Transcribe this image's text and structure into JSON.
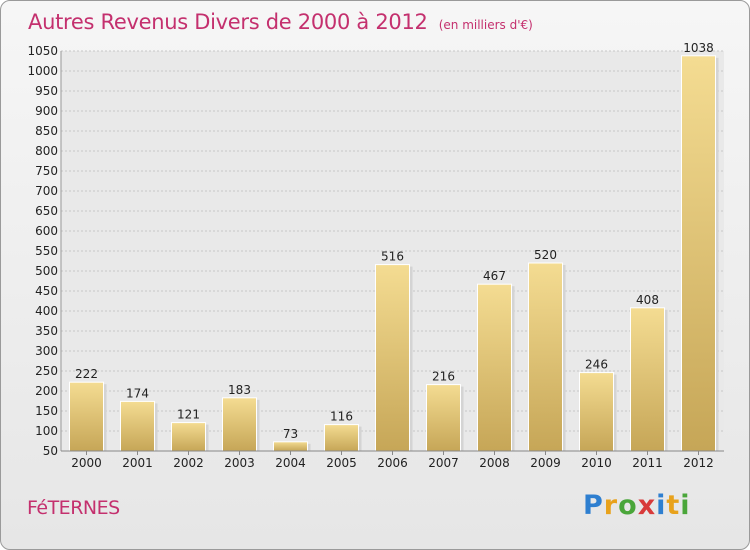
{
  "header": {
    "title": "Autres Revenus Divers de 2000 à 2012",
    "unit": "(en milliers d'€)"
  },
  "footer": {
    "commune": "FéTERNES",
    "logo_letters": [
      {
        "char": "P",
        "color": "#2e7fd0"
      },
      {
        "char": "r",
        "color": "#e8a21c"
      },
      {
        "char": "o",
        "color": "#4aa63a"
      },
      {
        "char": "x",
        "color": "#d83a3a"
      },
      {
        "char": "i",
        "color": "#2e7fd0"
      },
      {
        "char": "t",
        "color": "#e8a21c"
      },
      {
        "char": "i",
        "color": "#4aa63a"
      }
    ]
  },
  "colors": {
    "title": "#c4306e",
    "bar_light": "#f3d98e",
    "bar_dark": "#c9a95a"
  },
  "chart_data": {
    "type": "bar",
    "categories": [
      "2000",
      "2001",
      "2002",
      "2003",
      "2004",
      "2005",
      "2006",
      "2007",
      "2008",
      "2009",
      "2010",
      "2011",
      "2012"
    ],
    "values": [
      222,
      174,
      121,
      183,
      73,
      116,
      516,
      216,
      467,
      520,
      246,
      408,
      1038
    ],
    "ylim": [
      50,
      1050
    ],
    "yticks": [
      50,
      100,
      150,
      200,
      250,
      300,
      350,
      400,
      450,
      500,
      550,
      600,
      650,
      700,
      750,
      800,
      850,
      900,
      950,
      1000,
      1050
    ],
    "grid": true
  }
}
